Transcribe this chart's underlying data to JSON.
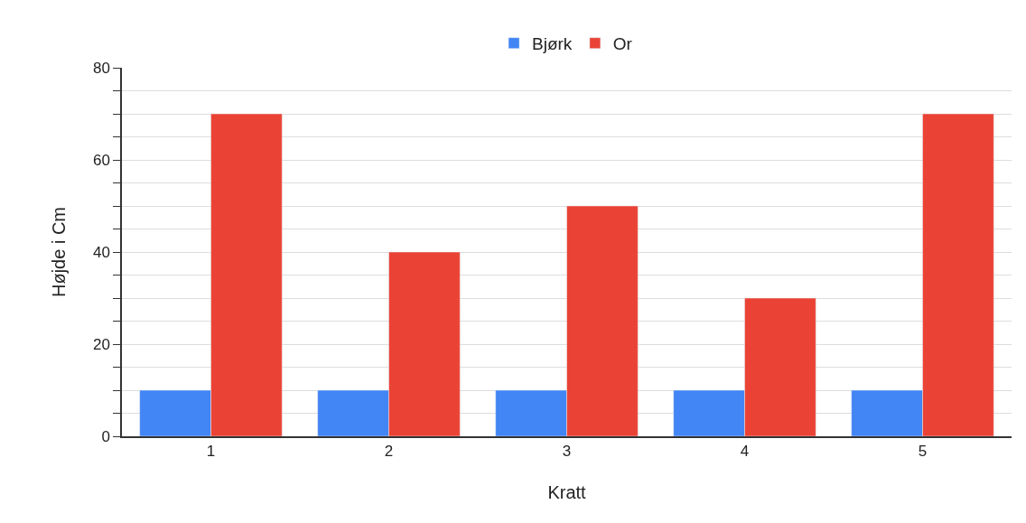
{
  "chart_data": {
    "type": "bar",
    "xlabel": "Kratt",
    "ylabel": "Højde i Cm",
    "categories": [
      "1",
      "2",
      "3",
      "4",
      "5"
    ],
    "series": [
      {
        "name": "Bjørk",
        "color": "#4285f4",
        "values": [
          10,
          10,
          10,
          10,
          10
        ]
      },
      {
        "name": "Or",
        "color": "#ea4335",
        "values": [
          70,
          40,
          50,
          30,
          70
        ]
      }
    ],
    "ylim": [
      0,
      80
    ],
    "yticks": [
      0,
      {
        "value": 5,
        "label": null
      },
      {
        "value": 10,
        "label": null
      },
      {
        "value": 15,
        "label": null
      },
      20,
      {
        "value": 25,
        "label": null
      },
      {
        "value": 30,
        "label": null
      },
      {
        "value": 35,
        "label": null
      },
      40,
      {
        "value": 45,
        "label": null
      },
      {
        "value": 50,
        "label": null
      },
      {
        "value": 55,
        "label": null
      },
      60,
      {
        "value": 65,
        "label": null
      },
      {
        "value": 70,
        "label": null
      },
      {
        "value": 75,
        "label": null
      },
      80
    ],
    "grid": "y",
    "legend": "top"
  }
}
